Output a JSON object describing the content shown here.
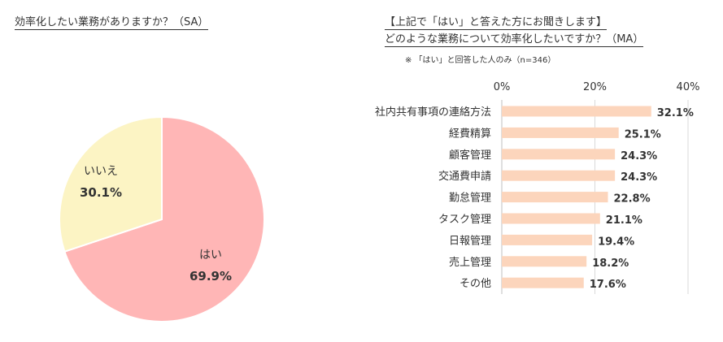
{
  "chart_data": [
    {
      "type": "pie",
      "title": "効率化したい業務がありますか？（SA）",
      "categories": [
        "はい",
        "いいえ"
      ],
      "values": [
        69.9,
        30.1
      ],
      "value_labels": [
        "69.9%",
        "30.1%"
      ],
      "colors": [
        "#FFB6B6",
        "#FCF4C4"
      ]
    },
    {
      "type": "bar",
      "orientation": "horizontal",
      "title_line1": "【上記で「はい」と答えた方にお聞きします】",
      "title_line2": "どのような業務について効率化したいですか？（MA）",
      "note": "※ 「はい」と回答した人のみ（n=346）",
      "categories": [
        "社内共有事項の連絡方法",
        "経費精算",
        "顧客管理",
        "交通費申請",
        "勤怠管理",
        "タスク管理",
        "日報管理",
        "売上管理",
        "その他"
      ],
      "values": [
        32.1,
        25.1,
        24.3,
        24.3,
        22.8,
        21.1,
        19.4,
        18.2,
        17.6
      ],
      "value_labels": [
        "32.1%",
        "25.1%",
        "24.3%",
        "24.3%",
        "22.8%",
        "21.1%",
        "19.4%",
        "18.2%",
        "17.6%"
      ],
      "xlim": [
        0,
        40
      ],
      "ticks": [
        0,
        20,
        40
      ],
      "tick_labels": [
        "0%",
        "20%",
        "40%"
      ],
      "bar_color": "#FCD5BC",
      "grid": true
    }
  ]
}
